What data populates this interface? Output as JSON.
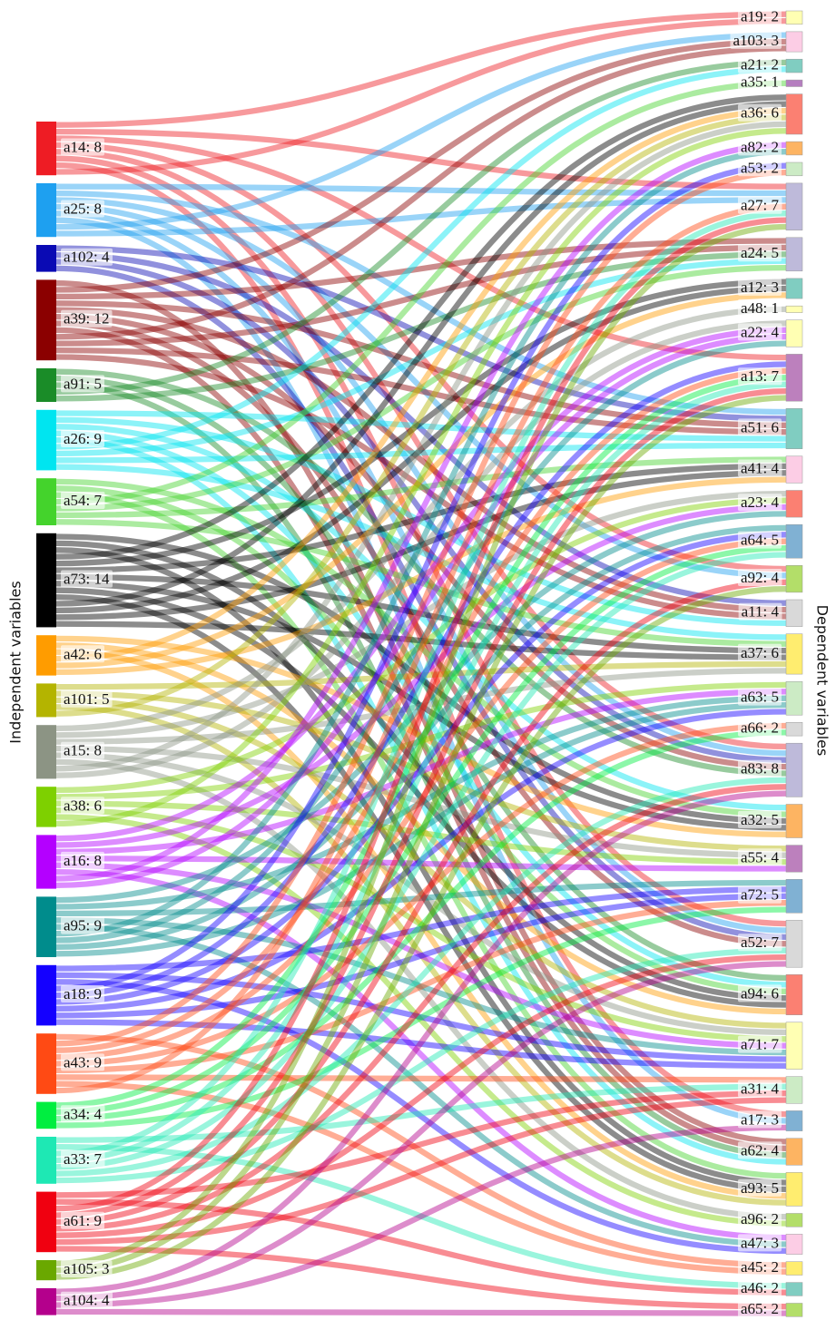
{
  "chart_data": {
    "type": "sankey",
    "left_title": "Independent variables",
    "right_title": "Dependent variables",
    "left": [
      {
        "label": "a14: 8",
        "value": 8,
        "color": "#ee1c24",
        "targets": [
          0,
          7,
          12,
          17,
          22,
          26,
          30,
          0
        ]
      },
      {
        "label": "a25: 8",
        "value": 8,
        "color": "#1ea0f0",
        "targets": [
          7,
          13,
          17,
          22,
          26,
          30,
          1,
          7
        ]
      },
      {
        "label": "a102: 4",
        "value": 4,
        "color": "#0a0ab4",
        "targets": [
          13,
          18,
          22,
          26
        ]
      },
      {
        "label": "a39: 12",
        "value": 12,
        "color": "#8b0000",
        "targets": [
          31,
          1,
          8,
          13,
          18,
          22,
          26,
          31,
          1,
          8,
          13,
          18
        ]
      },
      {
        "label": "a91: 5",
        "value": 5,
        "color": "#1a8c28",
        "targets": [
          22,
          27,
          31,
          2,
          8
        ]
      },
      {
        "label": "a26: 9",
        "value": 9,
        "color": "#00e5f0",
        "targets": [
          13,
          18,
          23,
          27,
          31,
          2,
          8,
          13,
          19
        ]
      },
      {
        "label": "a54: 7",
        "value": 7,
        "color": "#44d32c",
        "targets": [
          23,
          27,
          32,
          3,
          8,
          14,
          19
        ]
      },
      {
        "label": "a73: 14",
        "value": 14,
        "color": "#000000",
        "targets": [
          23,
          27,
          32,
          4,
          9,
          14,
          19,
          23,
          27,
          32,
          4,
          9,
          14,
          19
        ]
      },
      {
        "label": "a42: 6",
        "value": 6,
        "color": "#ff9c00",
        "targets": [
          23,
          27,
          32,
          4,
          9,
          14
        ]
      },
      {
        "label": "a101: 5",
        "value": 5,
        "color": "#b4b400",
        "targets": [
          19,
          24,
          28,
          32,
          4
        ]
      },
      {
        "label": "a15: 8",
        "value": 8,
        "color": "#8c9484",
        "targets": [
          10,
          15,
          19,
          24,
          28,
          33,
          4,
          11
        ]
      },
      {
        "label": "a38: 6",
        "value": 6,
        "color": "#7ed000",
        "targets": [
          15,
          20,
          24,
          28,
          33,
          4
        ]
      },
      {
        "label": "a16: 8",
        "value": 8,
        "color": "#b400ff",
        "targets": [
          11,
          15,
          20,
          24,
          28,
          34,
          5,
          11
        ]
      },
      {
        "label": "a95: 9",
        "value": 9,
        "color": "#008c8c",
        "targets": [
          15,
          20,
          25,
          28,
          34,
          5,
          11,
          16,
          20
        ]
      },
      {
        "label": "a18: 9",
        "value": 9,
        "color": "#1400ff",
        "targets": [
          25,
          28,
          34,
          6,
          12,
          16,
          20,
          25,
          28
        ]
      },
      {
        "label": "a43: 9",
        "value": 9,
        "color": "#ff4a14",
        "targets": [
          35,
          6,
          12,
          16,
          21,
          25,
          29,
          35,
          7
        ]
      },
      {
        "label": "a34: 4",
        "value": 4,
        "color": "#00ee40",
        "targets": [
          12,
          16,
          21,
          25
        ]
      },
      {
        "label": "a33: 7",
        "value": 7,
        "color": "#1ee8b4",
        "targets": [
          29,
          36,
          7,
          12,
          16,
          22,
          26
        ]
      },
      {
        "label": "a61: 9",
        "value": 9,
        "color": "#f00010",
        "targets": [
          29,
          36,
          7,
          12,
          17,
          22,
          26,
          29,
          37
        ]
      },
      {
        "label": "a105: 3",
        "value": 3,
        "color": "#6aa800",
        "targets": [
          7,
          12,
          17
        ]
      },
      {
        "label": "a104: 4",
        "value": 4,
        "color": "#b4008c",
        "targets": [
          22,
          26,
          30,
          37
        ]
      }
    ],
    "right": [
      {
        "label": "a19: 2",
        "value": 2,
        "color": "#ffffb3"
      },
      {
        "label": "a103: 3",
        "value": 3,
        "color": "#fccde5"
      },
      {
        "label": "a21: 2",
        "value": 2,
        "color": "#80cdc1"
      },
      {
        "label": "a35: 1",
        "value": 1,
        "color": "#b57ebf"
      },
      {
        "label": "a36: 6",
        "value": 6,
        "color": "#fb8072"
      },
      {
        "label": "a82: 2",
        "value": 2,
        "color": "#fdb462"
      },
      {
        "label": "a53: 2",
        "value": 2,
        "color": "#ccebc5"
      },
      {
        "label": "a27: 7",
        "value": 7,
        "color": "#bebada"
      },
      {
        "label": "a24: 5",
        "value": 5,
        "color": "#bebada"
      },
      {
        "label": "a12: 3",
        "value": 3,
        "color": "#80cdc1"
      },
      {
        "label": "a48: 1",
        "value": 1,
        "color": "#ffffb3"
      },
      {
        "label": "a22: 4",
        "value": 4,
        "color": "#ffffb3"
      },
      {
        "label": "a13: 7",
        "value": 7,
        "color": "#bc80bd"
      },
      {
        "label": "a51: 6",
        "value": 6,
        "color": "#80cdc1"
      },
      {
        "label": "a41: 4",
        "value": 4,
        "color": "#fccde5"
      },
      {
        "label": "a23: 4",
        "value": 4,
        "color": "#fb8072"
      },
      {
        "label": "a64: 5",
        "value": 5,
        "color": "#80b1d3"
      },
      {
        "label": "a92: 4",
        "value": 4,
        "color": "#b3de69"
      },
      {
        "label": "a11: 4",
        "value": 4,
        "color": "#d9d9d9"
      },
      {
        "label": "a37: 6",
        "value": 6,
        "color": "#ffed6f"
      },
      {
        "label": "a63: 5",
        "value": 5,
        "color": "#ccebc5"
      },
      {
        "label": "a66: 2",
        "value": 2,
        "color": "#d9d9d9"
      },
      {
        "label": "a83: 8",
        "value": 8,
        "color": "#bebada"
      },
      {
        "label": "a32: 5",
        "value": 5,
        "color": "#fdb462"
      },
      {
        "label": "a55: 4",
        "value": 4,
        "color": "#bc80bd"
      },
      {
        "label": "a72: 5",
        "value": 5,
        "color": "#80b1d3"
      },
      {
        "label": "a52: 7",
        "value": 7,
        "color": "#d9d9d9"
      },
      {
        "label": "a94: 6",
        "value": 6,
        "color": "#fb8072"
      },
      {
        "label": "a71: 7",
        "value": 7,
        "color": "#ffffb3"
      },
      {
        "label": "a31: 4",
        "value": 4,
        "color": "#ccebc5"
      },
      {
        "label": "a17: 3",
        "value": 3,
        "color": "#80b1d3"
      },
      {
        "label": "a62: 4",
        "value": 4,
        "color": "#fdb462"
      },
      {
        "label": "a93: 5",
        "value": 5,
        "color": "#ffed6f"
      },
      {
        "label": "a96: 2",
        "value": 2,
        "color": "#b3de69"
      },
      {
        "label": "a47: 3",
        "value": 3,
        "color": "#fccde5"
      },
      {
        "label": "a45: 2",
        "value": 2,
        "color": "#ffed6f"
      },
      {
        "label": "a46: 2",
        "value": 2,
        "color": "#80cdc1"
      },
      {
        "label": "a65: 2",
        "value": 2,
        "color": "#b3de69"
      }
    ]
  }
}
